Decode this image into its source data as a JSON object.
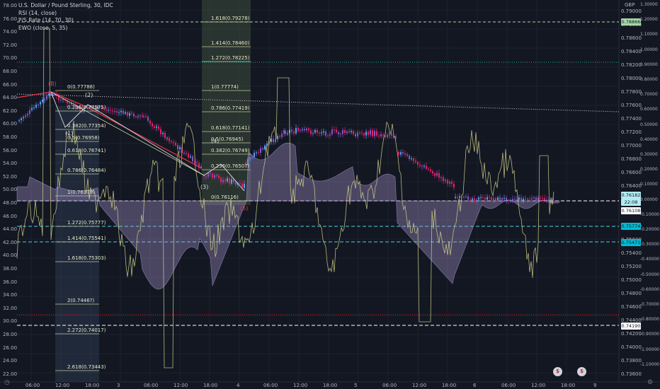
{
  "header": {
    "title": "U.S. Dollar / Pound Sterling, 30, IDC",
    "indicator_1": "RSI (14, close)",
    "indicator_2": "P/S Rate (14, 70, 30)",
    "indicator_3": "EWO (close, 5, 35)"
  },
  "axes": {
    "currency": "GBP",
    "rsi_ticks": [
      "78.00",
      "76.00",
      "74.00",
      "72.00",
      "70.00",
      "68.00",
      "66.00",
      "64.00",
      "62.00",
      "60.00",
      "58.00",
      "56.00",
      "54.00",
      "52.00",
      "50.00",
      "48.00",
      "46.00",
      "44.00",
      "42.00",
      "40.00",
      "38.00",
      "36.00",
      "34.00",
      "32.00",
      "30.00",
      "28.00",
      "26.00",
      "24.00",
      "22.00"
    ],
    "price_ticks": [
      "0.79000",
      "0.78800",
      "0.78600",
      "0.78400",
      "0.78200",
      "0.78000",
      "0.77800",
      "0.77600",
      "0.77400",
      "0.77200",
      "0.77000",
      "0.76800",
      "0.76600",
      "0.76400",
      "0.76200",
      "0.76000",
      "0.75800",
      "0.75600",
      "0.75400",
      "0.75200",
      "0.75000",
      "0.74800",
      "0.74600",
      "0.74400",
      "0.74200",
      "0.74000",
      "0.73800",
      "0.73600"
    ],
    "ewo_ticks": [
      "1.30000",
      "1.20000",
      "1.10000",
      "1.00000",
      "0.90000",
      "0.80000",
      "0.70000",
      "0.60000",
      "0.50000",
      "0.40000",
      "0.30000",
      "0.20000",
      "0.10000",
      "0.00000",
      "-0.10000",
      "-0.20000",
      "-0.30000",
      "-0.40000",
      "-0.50000",
      "-0.60000",
      "-0.70000",
      "-0.80000",
      "-0.90000",
      "-1.00000",
      "-1.10000"
    ],
    "time_ticks": [
      "06:00",
      "12:00",
      "18:00",
      "3",
      "06:00",
      "12:00",
      "18:00",
      "4",
      "06:00",
      "12:00",
      "18:00",
      "5",
      "06:00",
      "12:00",
      "18:00",
      "6",
      "06:00",
      "12:00",
      "18:00",
      "9"
    ]
  },
  "price_tags": [
    {
      "text": "0.78866",
      "color": "#a5d6a7",
      "fg": "#131722"
    },
    {
      "text": "0.76182",
      "color": "#b2ebf2",
      "fg": "#131722"
    },
    {
      "text": "22:08",
      "color": "#b2ebf2",
      "fg": "#131722"
    },
    {
      "text": "0.76108",
      "color": "#ffffff",
      "fg": "#131722"
    },
    {
      "text": "0.75774",
      "color": "#00bcd4",
      "fg": "#131722"
    },
    {
      "text": "0.75471",
      "color": "#00bcd4",
      "fg": "#131722"
    },
    {
      "text": "0.74190",
      "color": "#ffffff",
      "fg": "#131722"
    }
  ],
  "fib_left": [
    {
      "text": "0(0.77788)"
    },
    {
      "text": "0.236(0.77575)"
    },
    {
      "text": "0.382(0.77354)"
    },
    {
      "text": "0.5(0.76958)"
    },
    {
      "text": "0.618(0.76741)"
    },
    {
      "text": "0.786(0.76484)"
    },
    {
      "text": "1(0.76179)"
    },
    {
      "text": "1.272(0.75777)"
    },
    {
      "text": "1.414(0.75541)"
    },
    {
      "text": "1.618(0.75303)"
    },
    {
      "text": "2(0.7446?)"
    },
    {
      "text": "2.272(0.74017)"
    },
    {
      "text": "2.618(0.73443)"
    }
  ],
  "fib_right": [
    {
      "text": "1.618(0.79278)"
    },
    {
      "text": "1.414(0.78460)"
    },
    {
      "text": "1.272(0.78225)"
    },
    {
      "text": "1(0.77774)"
    },
    {
      "text": "0.786(0.77419)"
    },
    {
      "text": "0.618(0.77141)"
    },
    {
      "text": "0.5(0.76945)"
    },
    {
      "text": "0.382(0.76749)"
    },
    {
      "text": "0.236(0.76507)"
    },
    {
      "text": "0(0.76116)"
    }
  ],
  "wave_labels": [
    "(B)",
    "(1)",
    "(2)",
    "(3)",
    "(4)",
    "(5)"
  ],
  "events": [
    {
      "icon": "us-flag-icon",
      "text": "$"
    },
    {
      "icon": "us-flag-icon",
      "text": "$"
    }
  ],
  "colors": {
    "background": "#131722",
    "bull": "#5b9cf6",
    "bear": "#e91e63",
    "purple": "#7e57c2",
    "rsi": "#d4d28a",
    "ewo": "#b39ddb",
    "fib": "#cfd8a6"
  }
}
